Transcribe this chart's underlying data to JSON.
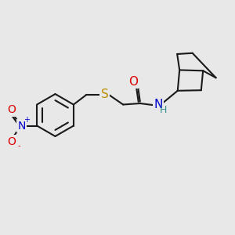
{
  "bg_color": "#e8e8e8",
  "bond_color": "#1a1a1a",
  "bond_lw": 1.5,
  "atom_colors": {
    "O": "#dd0000",
    "N_amide": "#0000cc",
    "H": "#3a9090",
    "S": "#b89000",
    "N_nitro": "#0000cc",
    "O_nitro": "#dd0000"
  },
  "font_size_atom": 10,
  "font_size_small": 7
}
